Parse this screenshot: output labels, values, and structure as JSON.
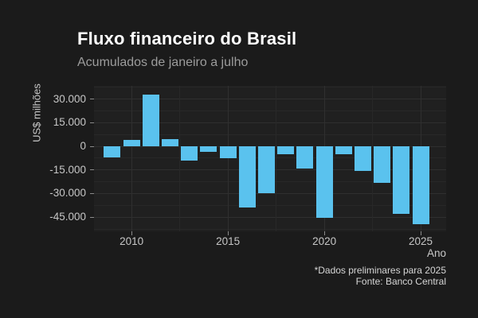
{
  "chart_data": {
    "type": "bar",
    "title": "Fluxo financeiro do Brasil",
    "subtitle": "Acumulados de janeiro a julho",
    "xlabel": "Ano",
    "ylabel": "US$ milhões",
    "unit": "US$ milhões",
    "categories": [
      2009,
      2010,
      2011,
      2012,
      2013,
      2014,
      2015,
      2016,
      2017,
      2018,
      2019,
      2020,
      2021,
      2022,
      2023,
      2024,
      2025
    ],
    "values": [
      -7000,
      4000,
      33000,
      4500,
      -9000,
      -3500,
      -7500,
      -39000,
      -30000,
      -5000,
      -14000,
      -45500,
      -5000,
      -15500,
      -23000,
      -43000,
      -49500
    ],
    "xlim": [
      2008.05,
      2026.32
    ],
    "ylim": [
      -54000,
      38400
    ],
    "yticks": [
      {
        "v": 30000,
        "label": "30.000"
      },
      {
        "v": 15000,
        "label": "15.000"
      },
      {
        "v": 0,
        "label": "0"
      },
      {
        "v": -15000,
        "label": "-15.000"
      },
      {
        "v": -30000,
        "label": "-30.000"
      },
      {
        "v": -45000,
        "label": "-45.000"
      }
    ],
    "xticks": [
      {
        "v": 2010,
        "label": "2010"
      },
      {
        "v": 2015,
        "label": "2015"
      },
      {
        "v": 2020,
        "label": "2020"
      },
      {
        "v": 2025,
        "label": "2025"
      }
    ],
    "y_minor": [
      37500,
      22500,
      7500,
      -7500,
      -22500,
      -37500,
      -52500
    ],
    "x_minor": [
      2012.5,
      2017.5,
      2022.5
    ],
    "grid": "on",
    "legend": "off",
    "note": "*Dados preliminares para 2025",
    "source": "Fonte: Banco Central",
    "colors": {
      "background": "#1b1b1b",
      "panel": "#202020",
      "bar": "#5ac2ee",
      "grid_major": "#2f2f2f",
      "grid_minor": "#282828",
      "title": "#ffffff",
      "subtitle": "#9c9c9c",
      "tick_label": "#c6c6c6",
      "caption": "#d6d6d6",
      "tick_mark": "#8a8a8a"
    }
  }
}
